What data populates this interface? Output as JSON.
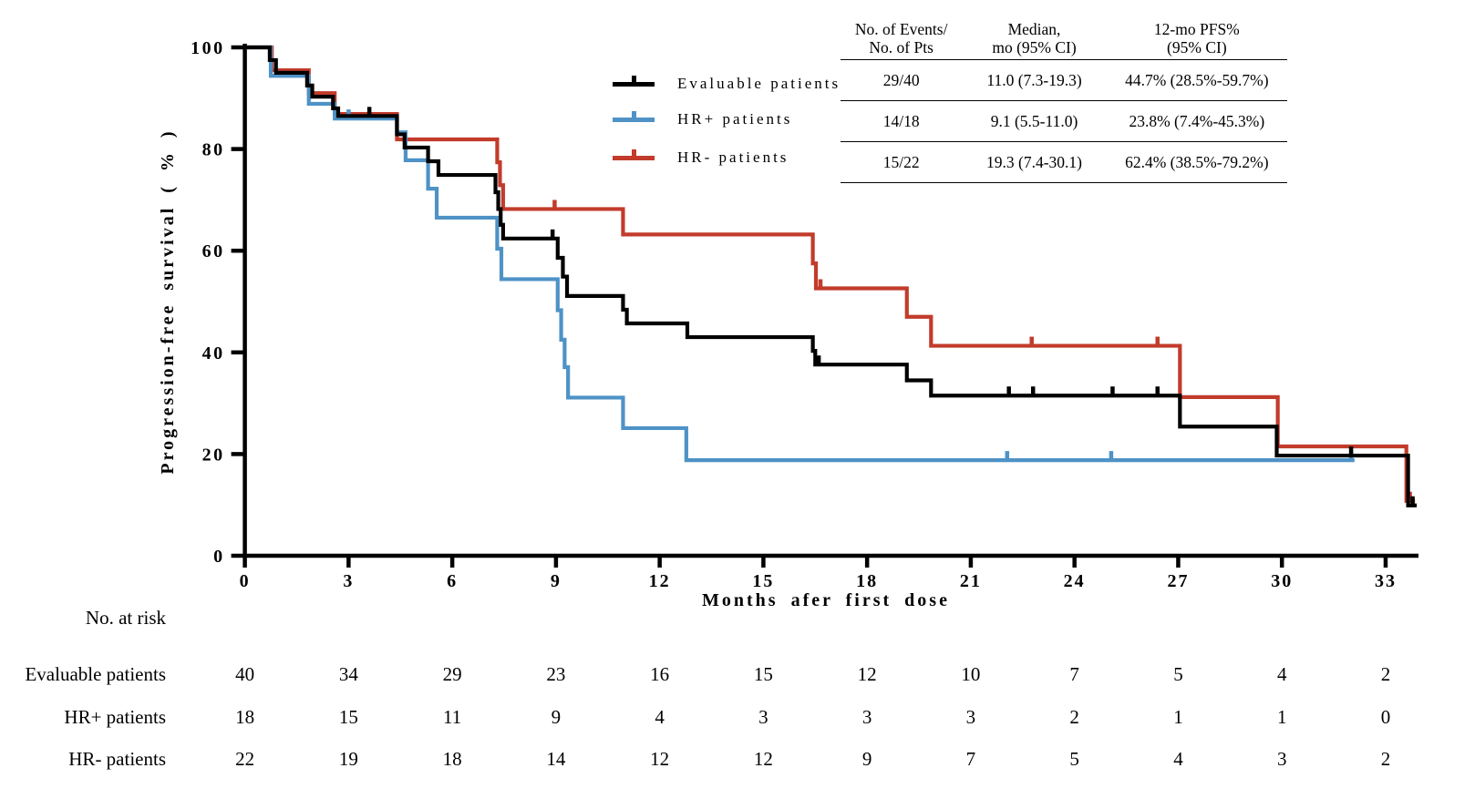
{
  "colors": {
    "evaluable": "#000000",
    "hr_pos": "#4e92c6",
    "hr_neg": "#c23b2b",
    "axis": "#000000",
    "background": "#ffffff"
  },
  "legend": [
    {
      "label": "Evaluable patients",
      "color": "#000000"
    },
    {
      "label": "HR+ patients",
      "color": "#4e92c6"
    },
    {
      "label": "HR- patients",
      "color": "#c23b2b"
    }
  ],
  "stats_table": {
    "headers": [
      [
        "No. of Events/",
        "No. of Pts"
      ],
      [
        "Median,",
        "mo (95% CI)"
      ],
      [
        "12-mo PFS%",
        "(95% CI)"
      ]
    ],
    "rows": [
      [
        "29/40",
        "11.0 (7.3-19.3)",
        "44.7% (28.5%-59.7%)"
      ],
      [
        "14/18",
        "9.1 (5.5-11.0)",
        "23.8% (7.4%-45.3%)"
      ],
      [
        "15/22",
        "19.3 (7.4-30.1)",
        "62.4% (38.5%-79.2%)"
      ]
    ]
  },
  "risk_table": {
    "title": "No. at risk",
    "months": [
      0,
      3,
      6,
      9,
      12,
      15,
      18,
      21,
      24,
      27,
      30,
      33
    ],
    "rows": [
      {
        "label": "Evaluable patients",
        "values": [
          "40",
          "34",
          "29",
          "23",
          "16",
          "15",
          "12",
          "10",
          "7",
          "5",
          "4",
          "2"
        ]
      },
      {
        "label": "HR+ patients",
        "values": [
          "18",
          "15",
          "11",
          "9",
          "4",
          "3",
          "3",
          "3",
          "2",
          "1",
          "1",
          "0"
        ]
      },
      {
        "label": "HR- patients",
        "values": [
          "22",
          "19",
          "18",
          "14",
          "12",
          "12",
          "9",
          "7",
          "5",
          "4",
          "3",
          "2"
        ]
      }
    ]
  },
  "chart_data": {
    "type": "line",
    "subtype": "kaplan-meier-step",
    "title": "",
    "xlabel": "Months afer first dose",
    "ylabel": "Progression-free survival ( % )",
    "x_axis": {
      "min": 0,
      "max": 34,
      "ticks": [
        0,
        3,
        6,
        9,
        12,
        15,
        18,
        21,
        24,
        27,
        30,
        33
      ]
    },
    "y_axis": {
      "min": 0,
      "max": 100,
      "ticks": [
        0,
        20,
        40,
        60,
        80,
        100
      ]
    },
    "grid": false,
    "legend_position": "upper-center-left",
    "series": [
      {
        "name": "HR- patients",
        "color": "#c23b2b",
        "end_month": 33.85,
        "points": [
          [
            0,
            100
          ],
          [
            0.78,
            95.5
          ],
          [
            1.85,
            91
          ],
          [
            2.6,
            86.9
          ],
          [
            4.4,
            81.9
          ],
          [
            7.3,
            77.4
          ],
          [
            7.38,
            72.9
          ],
          [
            7.47,
            68.2
          ],
          [
            10.94,
            63.2
          ],
          [
            16.43,
            57.5
          ],
          [
            16.52,
            52.6
          ],
          [
            19.15,
            47
          ],
          [
            19.85,
            41.3
          ],
          [
            27.05,
            31.2
          ],
          [
            29.88,
            21.5
          ],
          [
            33.6,
            10.8
          ]
        ],
        "censor_marks": [
          [
            8.96,
            68.2
          ],
          [
            16.65,
            52.6
          ],
          [
            22.76,
            41.3
          ],
          [
            26.4,
            41.3
          ],
          [
            33.7,
            10.8
          ]
        ]
      },
      {
        "name": "HR+ patients",
        "color": "#4e92c6",
        "end_month": 32.1,
        "points": [
          [
            0,
            100
          ],
          [
            0.75,
            94.4
          ],
          [
            1.85,
            88.9
          ],
          [
            2.6,
            86
          ],
          [
            4.4,
            83.3
          ],
          [
            4.65,
            77.8
          ],
          [
            5.3,
            72.2
          ],
          [
            5.55,
            66.5
          ],
          [
            7.3,
            60.4
          ],
          [
            7.42,
            54.4
          ],
          [
            9.05,
            48.3
          ],
          [
            9.15,
            42.5
          ],
          [
            9.25,
            37.1
          ],
          [
            9.35,
            31.1
          ],
          [
            10.94,
            25.1
          ],
          [
            12.77,
            18.8
          ]
        ],
        "censor_marks": [
          [
            3.0,
            86
          ],
          [
            22.05,
            18.8
          ],
          [
            25.06,
            18.8
          ],
          [
            32.0,
            18.8
          ]
        ]
      },
      {
        "name": "Evaluable patients",
        "color": "#000000",
        "end_month": 33.9,
        "points": [
          [
            0,
            100
          ],
          [
            0.72,
            97.5
          ],
          [
            0.9,
            95
          ],
          [
            1.8,
            92.5
          ],
          [
            1.95,
            90.3
          ],
          [
            2.55,
            88
          ],
          [
            2.7,
            86.5
          ],
          [
            4.4,
            82.9
          ],
          [
            4.62,
            80.3
          ],
          [
            5.3,
            77.6
          ],
          [
            5.6,
            74.9
          ],
          [
            7.25,
            71.5
          ],
          [
            7.33,
            68.2
          ],
          [
            7.4,
            65.1
          ],
          [
            7.47,
            62.4
          ],
          [
            9.05,
            58.6
          ],
          [
            9.2,
            54.9
          ],
          [
            9.32,
            51.1
          ],
          [
            10.94,
            48.4
          ],
          [
            11.05,
            45.7
          ],
          [
            12.8,
            43
          ],
          [
            16.43,
            40.3
          ],
          [
            16.5,
            37.6
          ],
          [
            19.15,
            34.5
          ],
          [
            19.85,
            31.5
          ],
          [
            27.05,
            25.4
          ],
          [
            29.85,
            19.7
          ],
          [
            33.65,
            9.9
          ]
        ],
        "censor_marks": [
          [
            3.6,
            86.5
          ],
          [
            8.9,
            62.4
          ],
          [
            16.6,
            37.6
          ],
          [
            22.1,
            31.5
          ],
          [
            22.8,
            31.5
          ],
          [
            25.1,
            31.5
          ],
          [
            26.4,
            31.5
          ],
          [
            32.0,
            19.7
          ],
          [
            33.78,
            9.9
          ]
        ]
      }
    ]
  }
}
